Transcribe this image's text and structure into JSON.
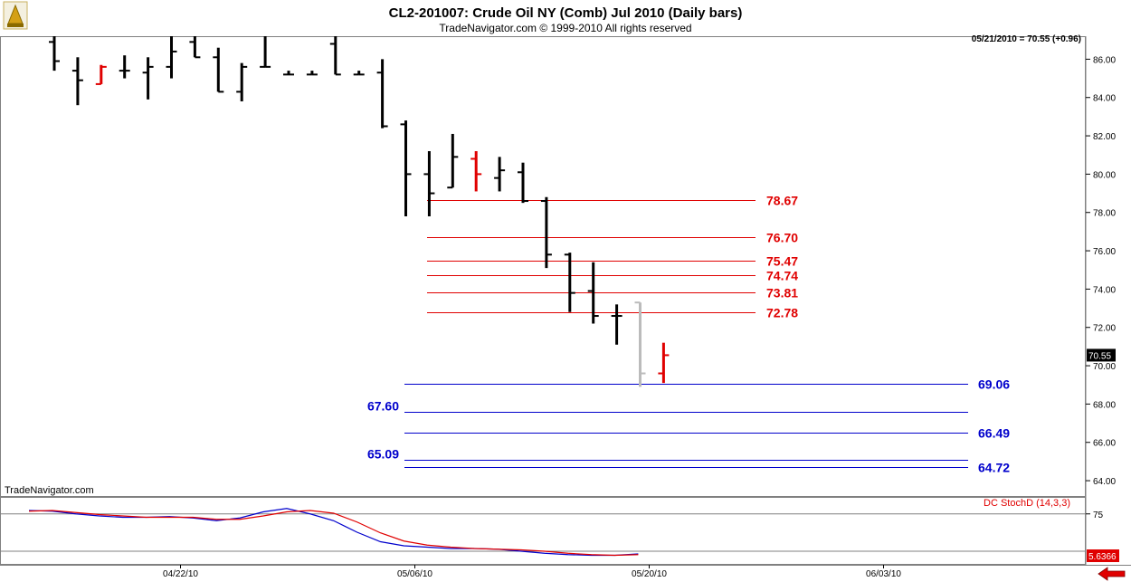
{
  "header": {
    "title": "CL2-201007:  Crude Oil NY (Comb) Jul 2010  (Daily bars)",
    "copyright": "TradeNavigator.com © 1999-2010 All rights reserved"
  },
  "last_quote": "05/21/2010 = 70.55 (+0.96)",
  "watermark": "TradeNavigator.com",
  "price_badge": "70.55",
  "stoch_badge": "5.6366",
  "colors": {
    "up_bar": "#e00000",
    "down_bar": "#000000",
    "fib": "#e00000",
    "support": "#0000cc",
    "stoch_k": "#0000cc",
    "stoch_d": "#e00000"
  },
  "chart_data": [
    {
      "type": "ohlc",
      "title": "CL2-201007:  Crude Oil NY (Comb) Jul 2010  (Daily bars)",
      "ylim": [
        63.2,
        87.2
      ],
      "y_ticks": [
        "86.00",
        "84.00",
        "82.00",
        "80.00",
        "78.00",
        "76.00",
        "74.00",
        "72.00",
        "70.00",
        "68.00",
        "66.00",
        "64.00"
      ],
      "y_tick_values": [
        86,
        84,
        82,
        80,
        78,
        76,
        74,
        72,
        70,
        68,
        66,
        64
      ],
      "x_ticks": [
        {
          "label": "04/22/10",
          "index": 5
        },
        {
          "label": "05/06/10",
          "index": 15
        },
        {
          "label": "05/20/10",
          "index": 25
        },
        {
          "label": "06/03/10",
          "index": 35
        }
      ],
      "bars": [
        {
          "o": 86.9,
          "h": 87.2,
          "l": 85.4,
          "c": 85.9,
          "color": "#000000"
        },
        {
          "o": 85.4,
          "h": 86.1,
          "l": 83.6,
          "c": 84.9,
          "color": "#000000"
        },
        {
          "o": 84.7,
          "h": 85.7,
          "l": 84.7,
          "c": 85.6,
          "color": "#e00000"
        },
        {
          "o": 85.4,
          "h": 86.2,
          "l": 85.0,
          "c": 85.4,
          "color": "#000000"
        },
        {
          "o": 85.3,
          "h": 86.1,
          "l": 83.9,
          "c": 85.6,
          "color": "#000000"
        },
        {
          "o": 85.6,
          "h": 87.2,
          "l": 85.0,
          "c": 86.4,
          "color": "#000000"
        },
        {
          "o": 86.9,
          "h": 87.2,
          "l": 86.1,
          "c": 86.1,
          "color": "#000000"
        },
        {
          "o": 86.1,
          "h": 86.6,
          "l": 84.3,
          "c": 84.3,
          "color": "#000000"
        },
        {
          "o": 84.3,
          "h": 85.8,
          "l": 83.8,
          "c": 85.6,
          "color": "#000000"
        },
        {
          "o": 85.6,
          "h": 87.2,
          "l": 85.6,
          "c": 85.6,
          "color": "#000000"
        },
        {
          "o": 85.2,
          "h": 85.4,
          "l": 85.2,
          "c": 85.2,
          "color": "#000000"
        },
        {
          "o": 85.2,
          "h": 85.4,
          "l": 85.2,
          "c": 85.2,
          "color": "#000000"
        },
        {
          "o": 86.8,
          "h": 87.2,
          "l": 85.2,
          "c": 85.2,
          "color": "#000000"
        },
        {
          "o": 85.2,
          "h": 85.4,
          "l": 85.2,
          "c": 85.2,
          "color": "#000000"
        },
        {
          "o": 85.3,
          "h": 86.0,
          "l": 82.4,
          "c": 82.5,
          "color": "#000000"
        },
        {
          "o": 82.6,
          "h": 82.8,
          "l": 77.8,
          "c": 80.0,
          "color": "#000000"
        },
        {
          "o": 80.0,
          "h": 81.2,
          "l": 77.8,
          "c": 79.0,
          "color": "#000000"
        },
        {
          "o": 79.3,
          "h": 82.1,
          "l": 79.3,
          "c": 80.9,
          "color": "#000000"
        },
        {
          "o": 80.8,
          "h": 81.2,
          "l": 79.1,
          "c": 80.0,
          "color": "#e00000"
        },
        {
          "o": 79.8,
          "h": 80.9,
          "l": 79.1,
          "c": 80.2,
          "color": "#000000"
        },
        {
          "o": 80.1,
          "h": 80.6,
          "l": 78.5,
          "c": 78.6,
          "color": "#000000"
        },
        {
          "o": 78.6,
          "h": 78.8,
          "l": 75.1,
          "c": 75.8,
          "color": "#000000"
        },
        {
          "o": 75.8,
          "h": 75.9,
          "l": 72.8,
          "c": 73.8,
          "color": "#000000"
        },
        {
          "o": 73.9,
          "h": 75.4,
          "l": 72.2,
          "c": 72.6,
          "color": "#000000"
        },
        {
          "o": 72.6,
          "h": 73.2,
          "l": 71.1,
          "c": 72.6,
          "color": "#000000"
        },
        {
          "o": 73.3,
          "h": 73.3,
          "l": 68.9,
          "c": 69.6,
          "color": "#bbbbbb"
        },
        {
          "o": 69.6,
          "h": 71.2,
          "l": 69.1,
          "c": 70.55,
          "color": "#e00000"
        }
      ],
      "fib_levels": [
        {
          "value": 78.67,
          "label": "78.67"
        },
        {
          "value": 76.7,
          "label": "76.70"
        },
        {
          "value": 75.47,
          "label": "75.47"
        },
        {
          "value": 74.74,
          "label": "74.74"
        },
        {
          "value": 73.81,
          "label": "73.81"
        },
        {
          "value": 72.78,
          "label": "72.78"
        }
      ],
      "support_levels": [
        {
          "value": 69.06,
          "label": "69.06",
          "side": "right"
        },
        {
          "value": 67.6,
          "label": "67.60",
          "side": "left"
        },
        {
          "value": 66.49,
          "label": "66.49",
          "side": "right"
        },
        {
          "value": 65.09,
          "label": "65.09",
          "side": "left"
        },
        {
          "value": 64.72,
          "label": "64.72",
          "side": "right"
        }
      ]
    },
    {
      "type": "line",
      "title": "DC StochD (14,3,3)",
      "ylim": [
        0,
        100
      ],
      "y_ticks": [
        "75"
      ],
      "y_tick_values": [
        75
      ],
      "series": [
        {
          "color": "#0000cc",
          "values": [
            80,
            79,
            75,
            72,
            70,
            70,
            71,
            69,
            65,
            69,
            78,
            83,
            75,
            65,
            48,
            34,
            28,
            26,
            24,
            24,
            23,
            20,
            17,
            15,
            14,
            14,
            16
          ]
        },
        {
          "color": "#e00000",
          "values": [
            79,
            80,
            77,
            74,
            72,
            70,
            70,
            70,
            67,
            67,
            72,
            78,
            80,
            76,
            63,
            47,
            35,
            29,
            26,
            24,
            23,
            22,
            20,
            17,
            15,
            14,
            15
          ]
        }
      ]
    }
  ]
}
